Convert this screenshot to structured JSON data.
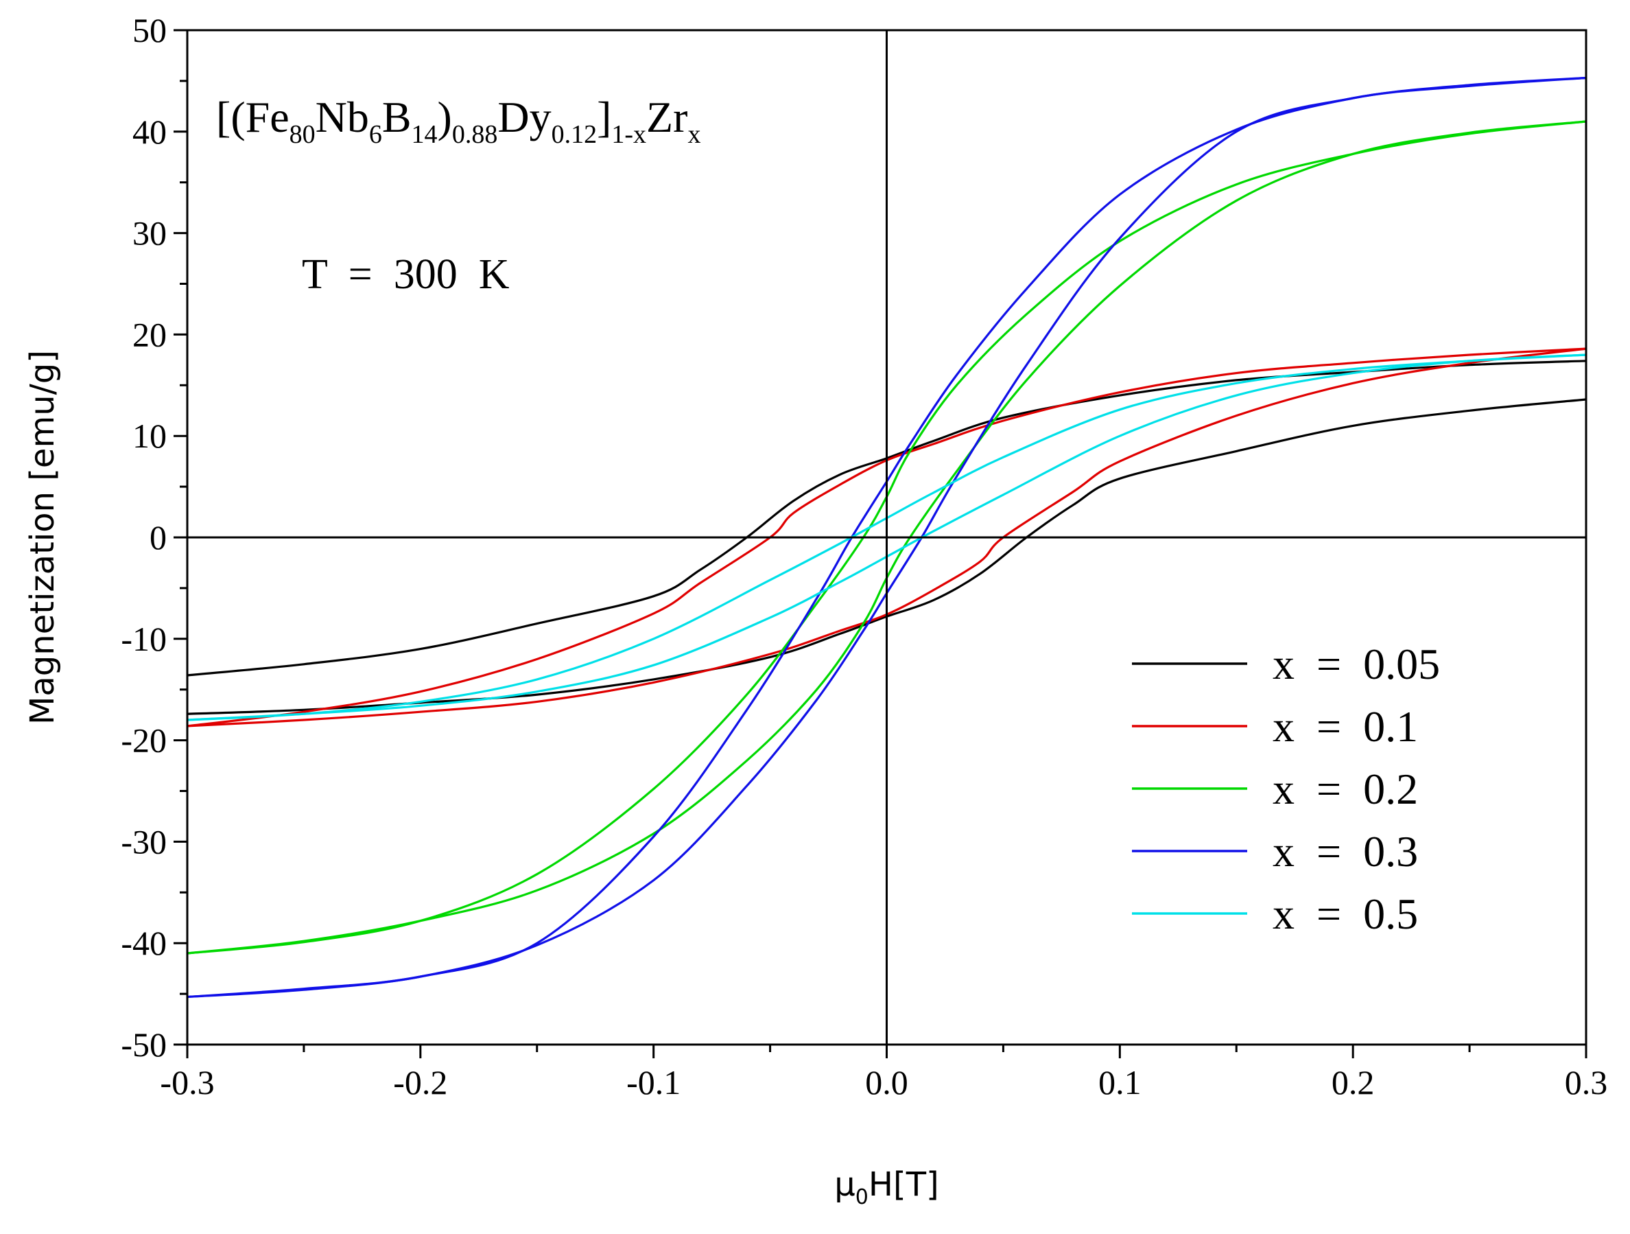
{
  "chart_data": {
    "type": "line",
    "title": "",
    "xlabel": {
      "main": "μ",
      "sub": "0",
      "rest": "H[T]"
    },
    "ylabel": "Magnetization [emu/g]",
    "xlim": [
      -0.3,
      0.3
    ],
    "ylim": [
      -50,
      50
    ],
    "xticks": [
      -0.3,
      -0.2,
      -0.1,
      0.0,
      0.1,
      0.2,
      0.3
    ],
    "xtick_labels": [
      "-0.3",
      "-0.2",
      "-0.1",
      "0.0",
      "0.1",
      "0.2",
      "0.3"
    ],
    "yticks": [
      -50,
      -40,
      -30,
      -20,
      -10,
      0,
      10,
      20,
      30,
      40,
      50
    ],
    "ytick_labels": [
      "-50",
      "-40",
      "-30",
      "-20",
      "-10",
      "0",
      "10",
      "20",
      "30",
      "40",
      "50"
    ],
    "grid": false,
    "legend_position": "bottom-right",
    "annotations": {
      "formula": [
        {
          "t": "[(Fe",
          "s": "n"
        },
        {
          "t": "80",
          "s": "sub"
        },
        {
          "t": "Nb",
          "s": "n"
        },
        {
          "t": "6",
          "s": "sub"
        },
        {
          "t": "B",
          "s": "n"
        },
        {
          "t": "14",
          "s": "sub"
        },
        {
          "t": ")",
          "s": "n"
        },
        {
          "t": "0.88",
          "s": "sub"
        },
        {
          "t": "Dy",
          "s": "n"
        },
        {
          "t": "0.12",
          "s": "sub"
        },
        {
          "t": "]",
          "s": "n"
        },
        {
          "t": "1-x",
          "s": "sub"
        },
        {
          "t": "Zr",
          "s": "n"
        },
        {
          "t": "x",
          "s": "sub"
        }
      ],
      "temperature": "T  =  300  K"
    },
    "series": [
      {
        "name": "x  =  0.05",
        "color": "#000000",
        "descending": {
          "x": [
            0.3,
            0.25,
            0.2,
            0.15,
            0.1,
            0.05,
            0.02,
            0.0,
            -0.02,
            -0.04,
            -0.06,
            -0.08,
            -0.1,
            -0.15,
            -0.2,
            -0.25,
            -0.3
          ],
          "y": [
            17.4,
            17.0,
            16.3,
            15.5,
            14.0,
            11.8,
            9.5,
            7.8,
            6.2,
            3.6,
            0.0,
            -3.2,
            -5.8,
            -8.5,
            -11.0,
            -12.5,
            -13.6
          ]
        },
        "ascending": {
          "x": [
            -0.3,
            -0.25,
            -0.2,
            -0.15,
            -0.1,
            -0.05,
            -0.02,
            0.0,
            0.02,
            0.04,
            0.06,
            0.08,
            0.1,
            0.15,
            0.2,
            0.25,
            0.3
          ],
          "y": [
            -17.4,
            -17.0,
            -16.3,
            -15.5,
            -14.0,
            -11.8,
            -9.5,
            -7.8,
            -6.2,
            -3.6,
            0.0,
            3.2,
            5.8,
            8.5,
            11.0,
            12.5,
            13.6
          ]
        }
      },
      {
        "name": "x  =  0.1",
        "color": "#e00000",
        "descending": {
          "x": [
            0.3,
            0.25,
            0.2,
            0.15,
            0.1,
            0.05,
            0.02,
            0.0,
            -0.02,
            -0.04,
            -0.05,
            -0.08,
            -0.1,
            -0.15,
            -0.2,
            -0.25,
            -0.3
          ],
          "y": [
            18.6,
            18.0,
            17.2,
            16.2,
            14.3,
            11.5,
            9.2,
            7.6,
            5.2,
            2.4,
            0.0,
            -4.5,
            -7.5,
            -12.0,
            -15.2,
            -17.2,
            -18.6
          ]
        },
        "ascending": {
          "x": [
            -0.3,
            -0.25,
            -0.2,
            -0.15,
            -0.1,
            -0.05,
            -0.02,
            0.0,
            0.02,
            0.04,
            0.05,
            0.08,
            0.1,
            0.15,
            0.2,
            0.25,
            0.3
          ],
          "y": [
            -18.6,
            -18.0,
            -17.2,
            -16.2,
            -14.3,
            -11.5,
            -9.2,
            -7.6,
            -5.2,
            -2.4,
            0.0,
            4.5,
            7.5,
            12.0,
            15.2,
            17.2,
            18.6
          ]
        }
      },
      {
        "name": "x  =  0.2",
        "color": "#00d800",
        "descending": {
          "x": [
            0.3,
            0.25,
            0.2,
            0.15,
            0.1,
            0.06,
            0.03,
            0.01,
            0.0,
            -0.01,
            -0.03,
            -0.06,
            -0.1,
            -0.15,
            -0.2,
            -0.25,
            -0.3
          ],
          "y": [
            41.0,
            39.8,
            37.8,
            34.8,
            29.2,
            22.0,
            15.0,
            8.5,
            4.0,
            0.0,
            -6.5,
            -15.5,
            -24.8,
            -33.2,
            -37.8,
            -39.9,
            -41.0
          ]
        },
        "ascending": {
          "x": [
            -0.3,
            -0.25,
            -0.2,
            -0.15,
            -0.1,
            -0.06,
            -0.03,
            -0.01,
            0.0,
            0.01,
            0.03,
            0.06,
            0.1,
            0.15,
            0.2,
            0.25,
            0.3
          ],
          "y": [
            -41.0,
            -39.8,
            -37.8,
            -34.8,
            -29.2,
            -22.0,
            -15.0,
            -8.5,
            -4.0,
            0.0,
            6.5,
            15.5,
            24.8,
            33.2,
            37.8,
            39.9,
            41.0
          ]
        }
      },
      {
        "name": "x  =  0.3",
        "color": "#1010e8",
        "descending": {
          "x": [
            0.3,
            0.25,
            0.2,
            0.15,
            0.1,
            0.06,
            0.03,
            0.01,
            0.0,
            -0.015,
            -0.03,
            -0.06,
            -0.1,
            -0.15,
            -0.2,
            -0.25,
            -0.3
          ],
          "y": [
            45.3,
            44.6,
            43.3,
            40.2,
            33.8,
            24.5,
            16.0,
            9.2,
            5.5,
            0.0,
            -6.0,
            -17.0,
            -29.5,
            -40.0,
            -43.3,
            -44.5,
            -45.3
          ]
        },
        "ascending": {
          "x": [
            -0.3,
            -0.25,
            -0.2,
            -0.15,
            -0.1,
            -0.06,
            -0.03,
            -0.01,
            0.0,
            0.015,
            0.03,
            0.06,
            0.1,
            0.15,
            0.2,
            0.25,
            0.3
          ],
          "y": [
            -45.3,
            -44.6,
            -43.3,
            -40.2,
            -33.8,
            -24.5,
            -16.0,
            -9.2,
            -5.5,
            0.0,
            6.0,
            17.0,
            29.5,
            40.0,
            43.3,
            44.5,
            45.3
          ]
        }
      },
      {
        "name": "x  =  0.5",
        "color": "#00e0e8",
        "descending": {
          "x": [
            0.3,
            0.25,
            0.2,
            0.15,
            0.1,
            0.05,
            0.02,
            0.0,
            -0.02,
            -0.05,
            -0.1,
            -0.15,
            -0.2,
            -0.25,
            -0.3
          ],
          "y": [
            18.0,
            17.4,
            16.6,
            15.2,
            12.6,
            7.9,
            4.4,
            1.9,
            -0.6,
            -4.2,
            -10.0,
            -14.0,
            -16.2,
            -17.4,
            -18.0
          ]
        },
        "ascending": {
          "x": [
            -0.3,
            -0.25,
            -0.2,
            -0.15,
            -0.1,
            -0.05,
            -0.02,
            0.0,
            0.02,
            0.05,
            0.1,
            0.15,
            0.2,
            0.25,
            0.3
          ],
          "y": [
            -18.0,
            -17.4,
            -16.6,
            -15.2,
            -12.6,
            -7.9,
            -4.4,
            -1.9,
            0.6,
            4.2,
            10.0,
            14.0,
            16.2,
            17.4,
            18.0
          ]
        }
      }
    ]
  }
}
